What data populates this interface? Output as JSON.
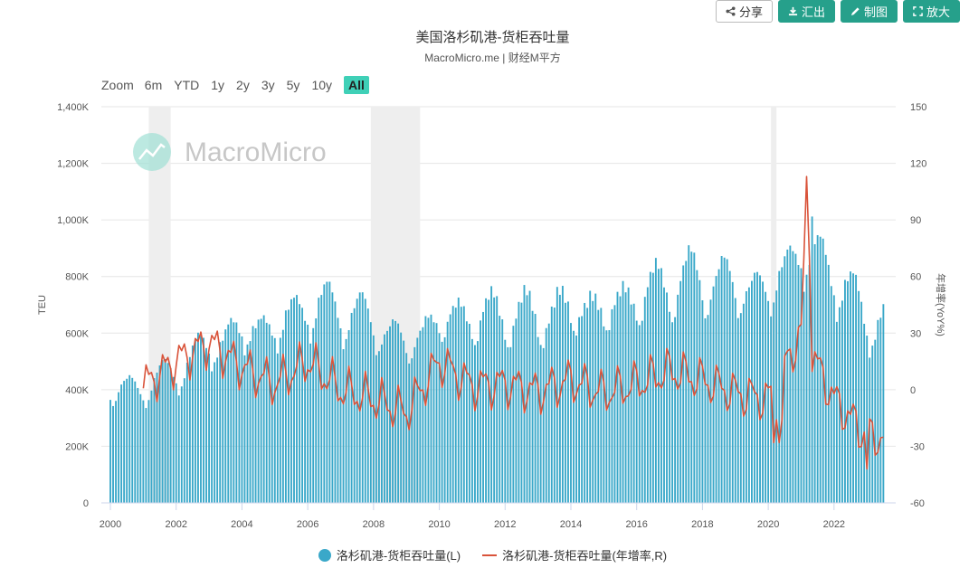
{
  "toolbar": {
    "share": "分享",
    "export": "汇出",
    "draw": "制图",
    "enlarge": "放大"
  },
  "header": {
    "title": "美国洛杉矶港-货柜吞吐量",
    "subtitle": "MacroMicro.me | 财经M平方"
  },
  "zoom": {
    "label": "Zoom",
    "options": [
      "6m",
      "YTD",
      "1y",
      "2y",
      "3y",
      "5y",
      "10y",
      "All"
    ],
    "selected": "All"
  },
  "watermark": "MacroMicro",
  "colors": {
    "bar": "#3aa8c9",
    "line": "#d9533a",
    "shade": "#eeeeee",
    "accent": "#26a08b"
  },
  "chart_data": {
    "type": "bar+line",
    "x_range": [
      "2000-01",
      "2023-07"
    ],
    "xticks": [
      "2000",
      "2002",
      "2004",
      "2006",
      "2008",
      "2010",
      "2012",
      "2014",
      "2016",
      "2018",
      "2020",
      "2022"
    ],
    "left_axis": {
      "label": "TEU",
      "ylim": [
        0,
        1400000
      ],
      "ticks": [
        "0",
        "200K",
        "400K",
        "600K",
        "800K",
        "1,000K",
        "1,200K",
        "1,400K"
      ]
    },
    "right_axis": {
      "label": "年增率(YoY%)",
      "ylim": [
        -60,
        150
      ],
      "ticks": [
        "-60",
        "-30",
        "0",
        "30",
        "60",
        "90",
        "120",
        "150"
      ]
    },
    "recessions": [
      [
        "2001-03",
        "2001-11"
      ],
      [
        "2007-12",
        "2009-06"
      ],
      [
        "2020-02",
        "2020-04"
      ]
    ],
    "series": [
      {
        "name": "洛杉矶港-货柜吞吐量(L)",
        "type": "bar",
        "axis": "left",
        "unit": "TEU (thousands)",
        "annual_level_approx": {
          "2000": 400,
          "2001": 410,
          "2002": 470,
          "2003": 560,
          "2004": 610,
          "2005": 620,
          "2006": 700,
          "2007": 690,
          "2008": 640,
          "2009": 560,
          "2010": 650,
          "2011": 660,
          "2012": 670,
          "2013": 660,
          "2014": 690,
          "2015": 680,
          "2016": 730,
          "2017": 780,
          "2018": 800,
          "2019": 770,
          "2020": 750,
          "2021": 900,
          "2022": 820,
          "2023": 650
        },
        "peak": {
          "date": "2021-05",
          "value": 1012
        }
      },
      {
        "name": "洛杉矶港-货柜吞吐量(年增率,R)",
        "type": "line",
        "axis": "right",
        "unit": "%",
        "annual_avg_approx": {
          "2000": 10,
          "2001": 2,
          "2002": 15,
          "2003": 25,
          "2004": 12,
          "2005": 3,
          "2006": 15,
          "2007": 0,
          "2008": -5,
          "2009": -12,
          "2010": 15,
          "2011": 2,
          "2012": 3,
          "2013": -1,
          "2014": 5,
          "2015": -2,
          "2016": 3,
          "2017": 10,
          "2018": 5,
          "2019": -2,
          "2020": -5,
          "2021": 30,
          "2022": -5,
          "2023": -25
        },
        "extremes": {
          "max": {
            "date": "2021-03",
            "value": 113
          },
          "min": {
            "date": "2023-01",
            "value": -42
          }
        }
      }
    ]
  },
  "legend": {
    "bar_label": "洛杉矶港-货柜吞吐量(L)",
    "line_label": "洛杉矶港-货柜吞吐量(年增率,R)"
  }
}
